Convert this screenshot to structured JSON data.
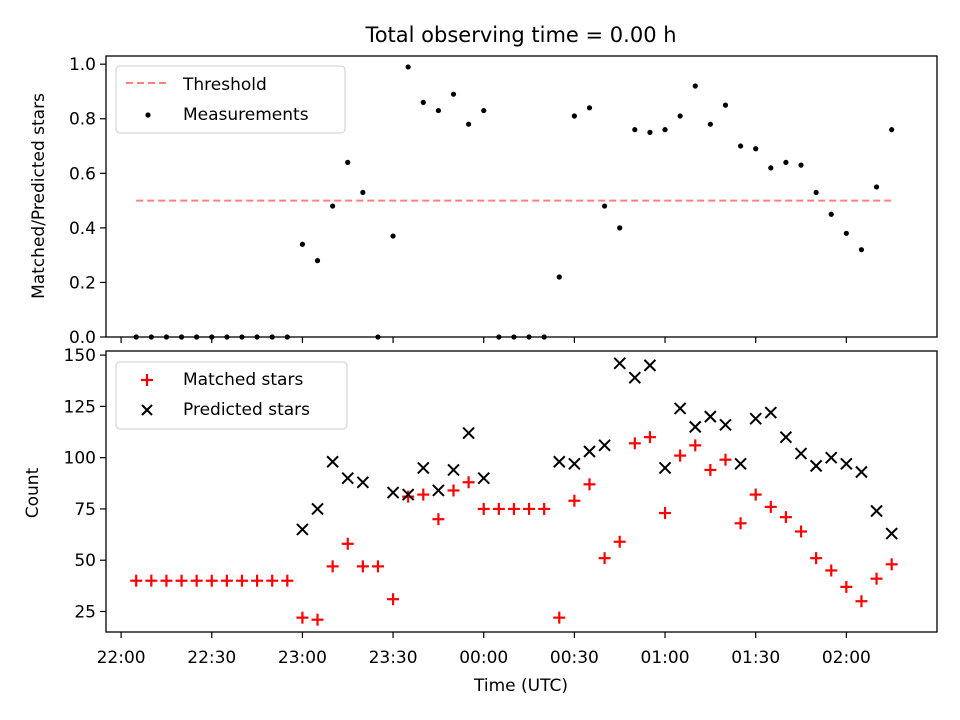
{
  "figure": {
    "title": "Total observing time = 0.00 h"
  },
  "chart_data": [
    {
      "type": "scatter",
      "ylabel": "Matched/Predicted stars",
      "ylim": [
        0,
        1.03
      ],
      "y_ticks": [
        0.0,
        0.2,
        0.4,
        0.6,
        0.8,
        1.0
      ],
      "y_tick_labels": [
        "0.0",
        "0.2",
        "0.4",
        "0.6",
        "0.8",
        "1.0"
      ],
      "legend": {
        "position": "upper-left",
        "entries": [
          "Threshold",
          "Measurements"
        ]
      },
      "threshold": {
        "name": "Threshold",
        "value": 0.5,
        "color": "#ff7f7f",
        "x_start": "22:05",
        "x_end": "02:15"
      },
      "series": [
        {
          "name": "Measurements",
          "color": "#000000",
          "marker": "dot",
          "x": [
            "22:05",
            "22:10",
            "22:15",
            "22:20",
            "22:25",
            "22:30",
            "22:35",
            "22:40",
            "22:45",
            "22:50",
            "22:55",
            "23:00",
            "23:05",
            "23:10",
            "23:15",
            "23:20",
            "23:25",
            "23:30",
            "23:35",
            "23:40",
            "23:45",
            "23:50",
            "23:55",
            "00:00",
            "00:05",
            "00:10",
            "00:15",
            "00:20",
            "00:25",
            "00:30",
            "00:35",
            "00:40",
            "00:45",
            "00:50",
            "00:55",
            "01:00",
            "01:05",
            "01:10",
            "01:15",
            "01:20",
            "01:25",
            "01:30",
            "01:35",
            "01:40",
            "01:45",
            "01:50",
            "01:55",
            "02:00",
            "02:05",
            "02:10",
            "02:15"
          ],
          "values": [
            0.0,
            0.0,
            0.0,
            0.0,
            0.0,
            0.0,
            0.0,
            0.0,
            0.0,
            0.0,
            0.0,
            0.34,
            0.28,
            0.48,
            0.64,
            0.53,
            0.0,
            0.37,
            0.99,
            0.86,
            0.83,
            0.89,
            0.78,
            0.83,
            0.0,
            0.0,
            0.0,
            0.0,
            0.22,
            0.81,
            0.84,
            0.48,
            0.4,
            0.76,
            0.75,
            0.76,
            0.81,
            0.92,
            0.78,
            0.85,
            0.7,
            0.69,
            0.62,
            0.64,
            0.63,
            0.53,
            0.45,
            0.38,
            0.32,
            0.55,
            0.76
          ]
        }
      ]
    },
    {
      "type": "scatter",
      "ylabel": "Count",
      "xlabel": "Time (UTC)",
      "ylim": [
        15,
        152
      ],
      "y_ticks": [
        25,
        50,
        75,
        100,
        125,
        150
      ],
      "y_tick_labels": [
        "25",
        "50",
        "75",
        "100",
        "125",
        "150"
      ],
      "x_ticks": [
        "22:00",
        "22:30",
        "23:00",
        "23:30",
        "00:00",
        "00:30",
        "01:00",
        "01:30",
        "02:00"
      ],
      "x_range": [
        "21:55",
        "02:30"
      ],
      "legend": {
        "position": "upper-left",
        "entries": [
          "Matched stars",
          "Predicted stars"
        ]
      },
      "series": [
        {
          "name": "Matched stars",
          "color": "#ff0000",
          "marker": "plus",
          "x": [
            "22:05",
            "22:10",
            "22:15",
            "22:20",
            "22:25",
            "22:30",
            "22:35",
            "22:40",
            "22:45",
            "22:50",
            "22:55",
            "23:00",
            "23:05",
            "23:10",
            "23:15",
            "23:20",
            "23:25",
            "23:30",
            "23:35",
            "23:40",
            "23:45",
            "23:50",
            "23:55",
            "00:00",
            "00:05",
            "00:10",
            "00:15",
            "00:20",
            "00:25",
            "00:30",
            "00:35",
            "00:40",
            "00:45",
            "00:50",
            "00:55",
            "01:00",
            "01:05",
            "01:10",
            "01:15",
            "01:20",
            "01:25",
            "01:30",
            "01:35",
            "01:40",
            "01:45",
            "01:50",
            "01:55",
            "02:00",
            "02:05",
            "02:10",
            "02:15"
          ],
          "values": [
            40,
            40,
            40,
            40,
            40,
            40,
            40,
            40,
            40,
            40,
            40,
            22,
            21,
            47,
            58,
            47,
            47,
            31,
            81,
            82,
            70,
            84,
            88,
            75,
            75,
            75,
            75,
            75,
            22,
            79,
            87,
            51,
            59,
            107,
            110,
            73,
            101,
            106,
            94,
            99,
            68,
            82,
            76,
            71,
            64,
            51,
            45,
            37,
            30,
            41,
            48
          ]
        },
        {
          "name": "Predicted stars",
          "color": "#000000",
          "marker": "x",
          "x": [
            "23:00",
            "23:05",
            "23:10",
            "23:15",
            "23:20",
            "23:30",
            "23:35",
            "23:40",
            "23:45",
            "23:50",
            "23:55",
            "00:00",
            "00:25",
            "00:30",
            "00:35",
            "00:40",
            "00:45",
            "00:50",
            "00:55",
            "01:00",
            "01:05",
            "01:10",
            "01:15",
            "01:20",
            "01:25",
            "01:30",
            "01:35",
            "01:40",
            "01:45",
            "01:50",
            "01:55",
            "02:00",
            "02:05",
            "02:10",
            "02:15"
          ],
          "values": [
            65,
            75,
            98,
            90,
            88,
            83,
            82,
            95,
            84,
            94,
            112,
            90,
            98,
            97,
            103,
            106,
            146,
            139,
            145,
            95,
            124,
            115,
            120,
            116,
            97,
            119,
            122,
            110,
            102,
            96,
            100,
            97,
            93,
            74,
            63
          ]
        }
      ]
    }
  ]
}
